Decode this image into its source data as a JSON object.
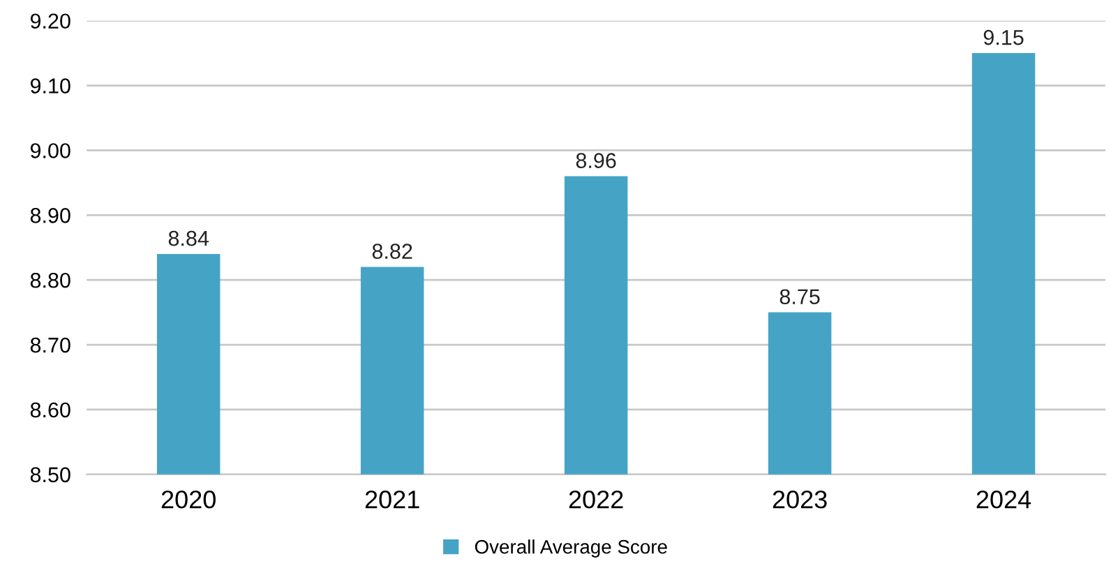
{
  "chart_data": {
    "type": "bar",
    "categories": [
      "2020",
      "2021",
      "2022",
      "2023",
      "2024"
    ],
    "series": [
      {
        "name": "Overall Average Score",
        "color": "#45a4c6",
        "values": [
          8.84,
          8.82,
          8.96,
          8.75,
          9.15
        ]
      }
    ],
    "ylim": [
      8.5,
      9.2
    ],
    "yticks": [
      {
        "value": 8.5,
        "label": "8.50"
      },
      {
        "value": 8.6,
        "label": "8.60"
      },
      {
        "value": 8.7,
        "label": "8.70"
      },
      {
        "value": 8.8,
        "label": "8.80"
      },
      {
        "value": 8.9,
        "label": "8.90"
      },
      {
        "value": 9.0,
        "label": "9.00"
      },
      {
        "value": 9.1,
        "label": "9.10"
      },
      {
        "value": 9.2,
        "label": "9.20"
      }
    ],
    "grid": "y",
    "legend": "bottom",
    "data_labels": true
  }
}
